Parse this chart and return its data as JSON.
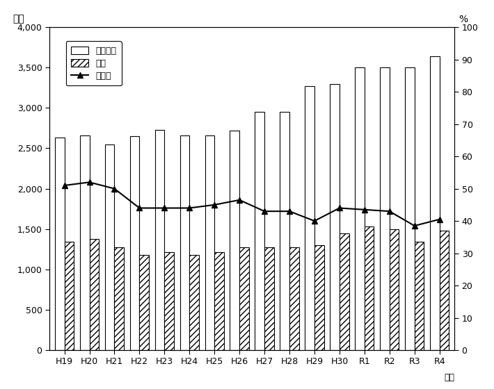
{
  "years": [
    "H19",
    "H20",
    "H21",
    "H22",
    "H23",
    "H24",
    "H25",
    "H26",
    "H27",
    "H28",
    "H29",
    "H30",
    "R1",
    "R2",
    "R3",
    "R4"
  ],
  "total_revenue": [
    2630,
    2660,
    2550,
    2650,
    2730,
    2660,
    2660,
    2720,
    2950,
    2950,
    3270,
    3300,
    3500,
    3500,
    3500,
    3640
  ],
  "city_tax": [
    1340,
    1380,
    1270,
    1175,
    1215,
    1175,
    1215,
    1270,
    1270,
    1270,
    1300,
    1450,
    1530,
    1500,
    1340,
    1480
  ],
  "ratio": [
    51,
    52,
    50,
    44,
    44,
    44,
    45,
    46.5,
    43,
    43,
    40,
    44,
    43.5,
    43,
    38.5,
    40.5
  ],
  "left_ylim": [
    0,
    4000
  ],
  "right_ylim": [
    0,
    100
  ],
  "left_yticks": [
    0,
    500,
    1000,
    1500,
    2000,
    2500,
    3000,
    3500,
    4000
  ],
  "right_yticks": [
    0,
    10,
    20,
    30,
    40,
    50,
    60,
    70,
    80,
    90,
    100
  ],
  "left_ylabel": "億円",
  "right_ylabel": "%",
  "xlabel": "年度",
  "legend_labels": [
    "歳入総額",
    "市税",
    "構成比"
  ],
  "bar_color_total": "#ffffff",
  "hatch_tax": "////",
  "line_color": "#000000",
  "marker": "^",
  "bar_width": 0.38,
  "edge_color": "#000000"
}
